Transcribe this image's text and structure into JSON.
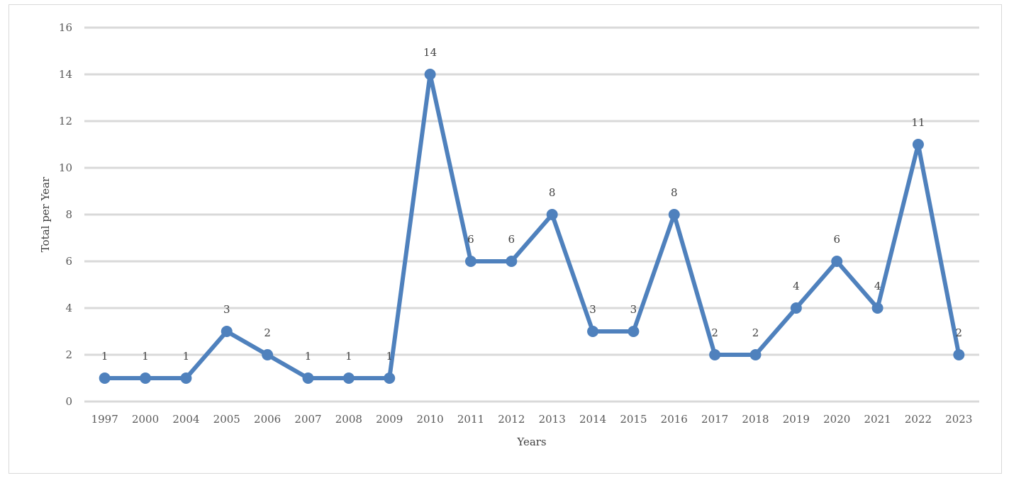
{
  "chart_data": {
    "type": "line",
    "title": "",
    "xlabel": "Years",
    "ylabel": "Total per Year",
    "ylim": [
      0,
      16
    ],
    "yticks": [
      0,
      2,
      4,
      6,
      8,
      10,
      12,
      14,
      16
    ],
    "grid": true,
    "legend": "none",
    "colors": {
      "series": "#4f81bd",
      "grid": "#d9d9d9"
    },
    "categories": [
      "1997",
      "2000",
      "2004",
      "2005",
      "2006",
      "2007",
      "2008",
      "2009",
      "2010",
      "2011",
      "2012",
      "2013",
      "2014",
      "2015",
      "2016",
      "2017",
      "2018",
      "2019",
      "2020",
      "2021",
      "2022",
      "2023"
    ],
    "series": [
      {
        "values": [
          1,
          1,
          1,
          3,
          2,
          1,
          1,
          1,
          14,
          6,
          6,
          8,
          3,
          3,
          8,
          2,
          2,
          4,
          6,
          4,
          11,
          2
        ]
      }
    ]
  }
}
